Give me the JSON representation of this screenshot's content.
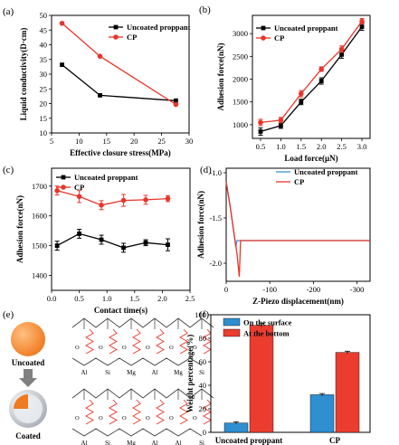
{
  "chart_data": [
    {
      "panel": "(a)",
      "type": "line",
      "xlabel": "Effective closure stress(MPa)",
      "ylabel": "Liquid conductivity(D·cm)",
      "xlim": [
        5,
        30
      ],
      "ylim": [
        10,
        50
      ],
      "xticks": [
        5,
        10,
        15,
        20,
        25,
        30
      ],
      "yticks": [
        10,
        15,
        20,
        25,
        30,
        35,
        40,
        45,
        50
      ],
      "legend_position": "top-right",
      "series": [
        {
          "name": "Uncoated proppant",
          "color": "#000000",
          "marker": "square",
          "x": [
            6.9,
            13.8,
            27.6
          ],
          "y": [
            33.2,
            22.8,
            21.0
          ]
        },
        {
          "name": "CP",
          "color": "#e8352a",
          "marker": "circle",
          "x": [
            6.9,
            13.8,
            27.6
          ],
          "y": [
            47.3,
            36.1,
            19.7
          ]
        }
      ]
    },
    {
      "panel": "(b)",
      "type": "line",
      "xlabel": "Load force(μN)",
      "ylabel": "Adhesion force(nN)",
      "xlim": [
        0.3,
        3.2
      ],
      "ylim": [
        700,
        3400
      ],
      "xticks": [
        0.5,
        1.0,
        1.5,
        2.0,
        2.5,
        3.0
      ],
      "yticks": [
        1000,
        1500,
        2000,
        2500,
        3000
      ],
      "legend_position": "top-left",
      "series": [
        {
          "name": "Uncoated proppant",
          "color": "#000000",
          "marker": "square",
          "x": [
            0.5,
            1.0,
            1.5,
            2.0,
            2.5,
            3.0
          ],
          "y": [
            850,
            980,
            1500,
            1960,
            2540,
            3150
          ],
          "err": [
            80,
            60,
            60,
            70,
            80,
            80
          ]
        },
        {
          "name": "CP",
          "color": "#e8352a",
          "marker": "circle",
          "x": [
            0.5,
            1.0,
            1.5,
            2.0,
            2.5,
            3.0
          ],
          "y": [
            1050,
            1100,
            1680,
            2220,
            2660,
            3270
          ],
          "err": [
            70,
            60,
            70,
            50,
            70,
            60
          ]
        }
      ]
    },
    {
      "panel": "(c)",
      "type": "line",
      "xlabel": "Contact time(s)",
      "ylabel": "Adhesion force(nN)",
      "xlim": [
        0,
        2.5
      ],
      "ylim": [
        1350,
        1760
      ],
      "xticks": [
        0.0,
        0.5,
        1.0,
        1.5,
        2.0,
        2.5
      ],
      "yticks": [
        1400,
        1500,
        1600,
        1700
      ],
      "legend_position": "top-left",
      "series": [
        {
          "name": "Uncoated proppant",
          "color": "#000000",
          "marker": "square",
          "x": [
            0.1,
            0.5,
            0.9,
            1.3,
            1.7,
            2.1
          ],
          "y": [
            1500,
            1540,
            1520,
            1493,
            1510,
            1503
          ],
          "err": [
            15,
            15,
            15,
            15,
            10,
            20
          ]
        },
        {
          "name": "CP",
          "color": "#e8352a",
          "marker": "circle",
          "x": [
            0.1,
            0.5,
            0.9,
            1.3,
            1.7,
            2.1
          ],
          "y": [
            1685,
            1665,
            1636,
            1652,
            1654,
            1658
          ],
          "err": [
            15,
            20,
            15,
            20,
            15,
            10
          ]
        }
      ]
    },
    {
      "panel": "(d)",
      "type": "line",
      "xlabel": "Z-Piezo displacement(nm)",
      "ylabel": "Adhesion force(nN)",
      "xlim": [
        0,
        -330
      ],
      "ylim": [
        -2.2,
        -0.95
      ],
      "xticks": [
        0,
        -100,
        -200,
        -300
      ],
      "yticks": [
        -1.0,
        -1.5,
        -2.0
      ],
      "legend_position": "top-right",
      "series": [
        {
          "name": "Uncoated proppant",
          "color": "#3a8fd8",
          "x": [
            0,
            -10,
            -22,
            -25,
            -27,
            -330
          ],
          "y": [
            -1.1,
            -1.4,
            -1.82,
            -1.75,
            -1.75,
            -1.75
          ]
        },
        {
          "name": "CP",
          "color": "#e8352a",
          "x": [
            0,
            -10,
            -25,
            -30,
            -33,
            -330
          ],
          "y": [
            -1.1,
            -1.4,
            -1.9,
            -2.15,
            -1.75,
            -1.75
          ]
        }
      ]
    },
    {
      "panel": "(f)",
      "type": "bar",
      "ylabel": "Weight percentage(%)",
      "ylim": [
        0,
        100
      ],
      "yticks": [
        0,
        20,
        40,
        60,
        80,
        100
      ],
      "legend_position": "top-left",
      "categories": [
        "Uncoated proppant",
        "CP"
      ],
      "series": [
        {
          "name": "On the surface",
          "color": "#2f8fd0",
          "values": [
            8,
            32
          ],
          "err": [
            1,
            1
          ]
        },
        {
          "name": "At the bottom",
          "color": "#ea3d2f",
          "values": [
            91,
            68
          ],
          "err": [
            1.5,
            1
          ]
        }
      ]
    }
  ],
  "schematic": {
    "panel": "(e)",
    "label_top": "Uncoated",
    "label_bottom": "Coated",
    "row_top_atoms": [
      "Al",
      "Si",
      "Mg",
      "Al",
      "Mg",
      "Si"
    ],
    "row_bottom_atoms": [
      "Al",
      "Si",
      "Mg",
      "Al",
      "Al",
      "Si"
    ],
    "colors": {
      "sphere": "#f07a20",
      "shell": "#d9dde2",
      "arrow": "#808080",
      "spring": "#e8352a"
    }
  }
}
